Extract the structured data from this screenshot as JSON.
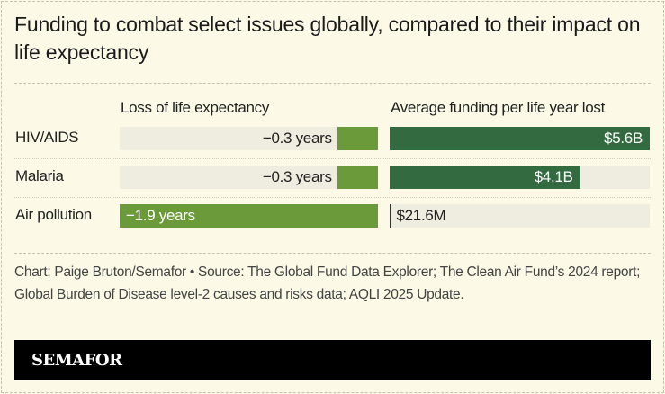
{
  "title": "Funding to combat select issues globally, compared to their impact on life expectancy",
  "chart_data": {
    "type": "bar",
    "categories": [
      "HIV/AIDS",
      "Malaria",
      "Air pollution"
    ],
    "series": [
      {
        "name": "Loss of life expectancy",
        "values": [
          -0.3,
          -0.3,
          -1.9
        ],
        "labels": [
          "−0.3 years",
          "−0.3 years",
          "−1.9 years"
        ],
        "unit": "years",
        "color": "#6a9a3a"
      },
      {
        "name": "Average funding per life year lost",
        "values": [
          5.6,
          4.1,
          0.0216
        ],
        "labels": [
          "$5.6B",
          "$4.1B",
          "$21.6M"
        ],
        "unit": "billion USD",
        "color": "#336a3f"
      }
    ],
    "track_color": "#efeddf"
  },
  "source": "Chart: Paige Bruton/Semafor • Source: The Global Fund Data Explorer; The Clean Air Fund’s 2024 report; Global Burden of Disease level-2 causes and risks data; AQLI 2025 Update.",
  "brand": "SEMAFOR"
}
